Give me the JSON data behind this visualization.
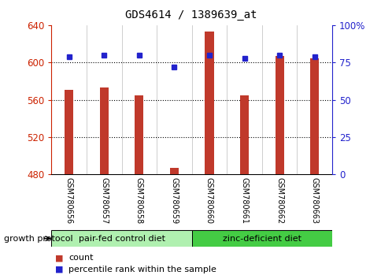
{
  "title": "GDS4614 / 1389639_at",
  "samples": [
    "GSM780656",
    "GSM780657",
    "GSM780658",
    "GSM780659",
    "GSM780660",
    "GSM780661",
    "GSM780662",
    "GSM780663"
  ],
  "counts": [
    571,
    573,
    565,
    487,
    633,
    565,
    607,
    604
  ],
  "percentiles": [
    79,
    80,
    80,
    72,
    80,
    78,
    80,
    79
  ],
  "y_min": 480,
  "y_max": 640,
  "y_ticks": [
    480,
    520,
    560,
    600,
    640
  ],
  "right_y_ticks": [
    0,
    25,
    50,
    75,
    100
  ],
  "right_y_labels": [
    "0",
    "25",
    "50",
    "75",
    "100%"
  ],
  "bar_color": "#c0392b",
  "dot_color": "#2222cc",
  "group1_label": "pair-fed control diet",
  "group2_label": "zinc-deficient diet",
  "group1_color": "#b0f0b0",
  "group2_color": "#44cc44",
  "group_protocol_label": "growth protocol",
  "group1_indices": [
    0,
    1,
    2,
    3
  ],
  "group2_indices": [
    4,
    5,
    6,
    7
  ],
  "left_axis_color": "#cc2200",
  "right_axis_color": "#2222cc",
  "bg_color": "#ffffff",
  "plot_bg": "#ffffff",
  "tick_label_area_color": "#cccccc",
  "grid_color": "#000000",
  "legend_count_label": "count",
  "legend_pct_label": "percentile rank within the sample",
  "bar_width": 0.25
}
